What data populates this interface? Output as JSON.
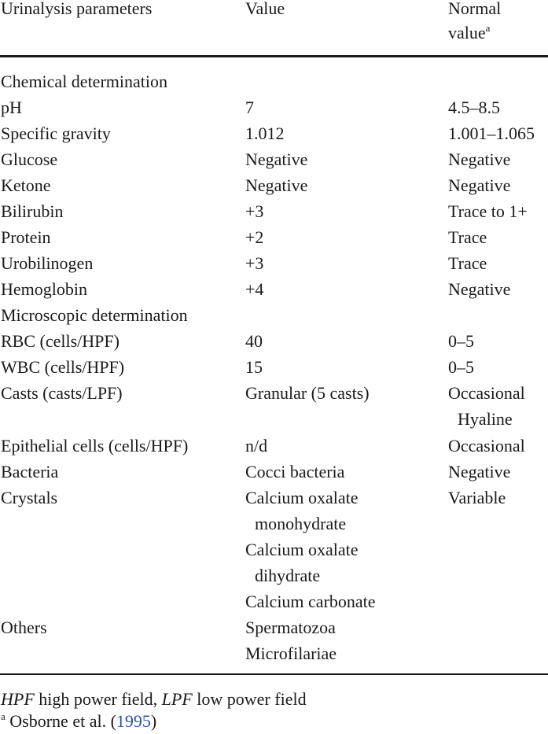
{
  "header": {
    "col1": "Urinalysis parameters",
    "col2": "Value",
    "col3_line1": "Normal",
    "col3_line2": "value",
    "col3_sup": "a"
  },
  "rows": [
    {
      "param": "Chemical determination",
      "value": "",
      "normal": ""
    },
    {
      "param": "pH",
      "value": "7",
      "normal": "4.5–8.5"
    },
    {
      "param": "Specific gravity",
      "value": "1.012",
      "normal": "1.001–1.065"
    },
    {
      "param": "Glucose",
      "value": "Negative",
      "normal": "Negative"
    },
    {
      "param": "Ketone",
      "value": "Negative",
      "normal": "Negative"
    },
    {
      "param": "Bilirubin",
      "value": "+3",
      "normal": "Trace to 1+"
    },
    {
      "param": "Protein",
      "value": "+2",
      "normal": "Trace"
    },
    {
      "param": "Urobilinogen",
      "value": "+3",
      "normal": "Trace"
    },
    {
      "param": "Hemoglobin",
      "value": "+4",
      "normal": "Negative"
    },
    {
      "param": "Microscopic determination",
      "value": "",
      "normal": ""
    },
    {
      "param": "RBC (cells/HPF)",
      "value": "40",
      "normal": "0–5"
    },
    {
      "param": "WBC (cells/HPF)",
      "value": "15",
      "normal": "0–5"
    },
    {
      "param": "Casts (casts/LPF)",
      "value": "Granular (5 casts)",
      "normal": "Occasional",
      "normal2": "Hyaline"
    },
    {
      "param": "Epithelial cells (cells/HPF)",
      "value": "n/d",
      "normal": "Occasional"
    },
    {
      "param": "Bacteria",
      "value": "Cocci bacteria",
      "normal": "Negative"
    },
    {
      "param": "Crystals",
      "value": "Calcium oxalate",
      "value2": "monohydrate",
      "value3": "Calcium oxalate",
      "value4": "dihydrate",
      "value5": "Calcium carbonate",
      "normal": "Variable"
    },
    {
      "param": "Others",
      "value": "Spermatozoa",
      "value2": "Microfilariae",
      "normal": ""
    }
  ],
  "footnotes": {
    "abbr1": "HPF",
    "abbr1_text": " high power field, ",
    "abbr2": "LPF",
    "abbr2_text": " low power field",
    "ref_sup": "a",
    "ref_text": " Osborne et al. (",
    "ref_year": "1995",
    "ref_close": ")"
  }
}
